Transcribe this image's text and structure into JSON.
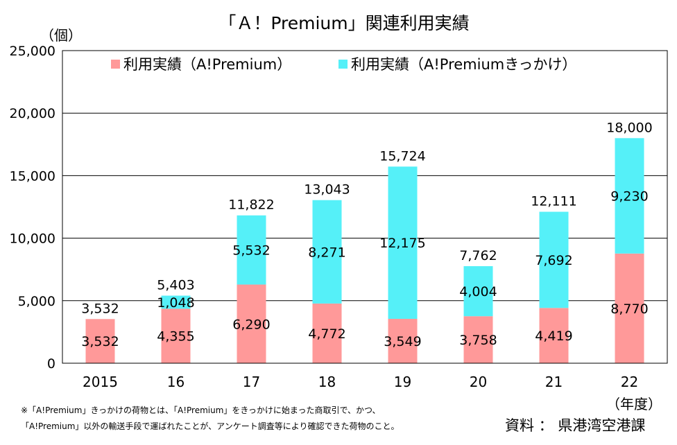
{
  "chart_data": {
    "type": "bar",
    "stacked": true,
    "title": "「Ａ！Premium」関連利用実績",
    "y_unit_label": "（個）",
    "x_unit_label": "（年度）",
    "categories": [
      "2015",
      "16",
      "17",
      "18",
      "19",
      "20",
      "21",
      "22"
    ],
    "series": [
      {
        "name": "利用実績（A!Premium）",
        "color": "#ff9999",
        "values": [
          3532,
          4355,
          6290,
          4772,
          3549,
          3758,
          4419,
          8770
        ]
      },
      {
        "name": "利用実績（A!Premiumきっかけ）",
        "color": "#55f0f8",
        "values": [
          null,
          1048,
          5532,
          8271,
          12175,
          4004,
          7692,
          9230
        ]
      }
    ],
    "totals": [
      3532,
      5403,
      11822,
      13043,
      15724,
      7762,
      12111,
      18000
    ],
    "ylim": [
      0,
      25000
    ],
    "yticks": [
      0,
      5000,
      10000,
      15000,
      20000,
      25000
    ],
    "grid": "horizontal",
    "legend_position": "top"
  },
  "notes": {
    "line1": "※「A!Premium」きっかけの荷物とは、「A!Premium」をきっかけに始まった商取引で、かつ、",
    "line2": "「A!Premium」以外の輸送手段で運ばれたことが、アンケート調査等により確認できた荷物のこと。",
    "source": "資料 ： 県港湾空港課"
  }
}
